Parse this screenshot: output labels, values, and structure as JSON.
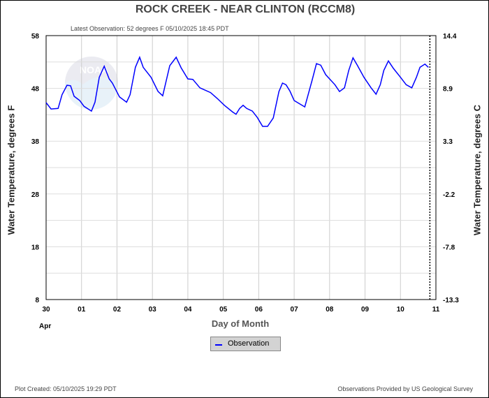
{
  "title": "ROCK CREEK - NEAR CLINTON  (RCCM8)",
  "latest_observation": "Latest Observation: 52 degrees F 05/10/2025 18:45 PDT",
  "footer": {
    "plot_created": "Plot Created: 05/10/2025 19:29 PDT",
    "provider": "Observations Provided by US Geological Survey"
  },
  "watermark": "NOAA",
  "chart_data": {
    "type": "line",
    "title": "ROCK CREEK - NEAR CLINTON  (RCCM8)",
    "xlabel": "Day of Month",
    "xlabel_month": "Apr",
    "ylabel": "Water Temperature, degrees F",
    "ylabel_right": "Water Temperature, degrees C",
    "xlim": [
      0,
      11
    ],
    "ylim": [
      8,
      58
    ],
    "x_ticks": [
      "30",
      "01",
      "02",
      "03",
      "04",
      "05",
      "06",
      "07",
      "08",
      "09",
      "10",
      "11"
    ],
    "y_ticks": [
      "58",
      "48",
      "38",
      "28",
      "18",
      "8"
    ],
    "y_tick_values": [
      58,
      48,
      38,
      28,
      18,
      8
    ],
    "y_ticks_right": [
      "14.4",
      "8.9",
      "3.3",
      "-2.2",
      "-7.8",
      "-13.3"
    ],
    "grid": true,
    "current_time_marker_day": 10.83,
    "legend": {
      "entries": [
        "Observation"
      ],
      "placement": "bottom-center"
    },
    "series": [
      {
        "name": "Observation",
        "color": "#0000ff",
        "x": [
          0,
          0.14,
          0.34,
          0.45,
          0.59,
          0.69,
          0.79,
          0.95,
          1.07,
          1.28,
          1.38,
          1.5,
          1.64,
          1.78,
          1.87,
          2.07,
          2.27,
          2.37,
          2.52,
          2.64,
          2.74,
          2.96,
          3.16,
          3.29,
          3.49,
          3.67,
          3.81,
          4.0,
          4.14,
          4.34,
          4.64,
          4.83,
          5.03,
          5.27,
          5.36,
          5.46,
          5.56,
          5.66,
          5.82,
          5.96,
          6.11,
          6.25,
          6.41,
          6.57,
          6.67,
          6.77,
          6.88,
          7.0,
          7.3,
          7.5,
          7.63,
          7.75,
          7.89,
          8.15,
          8.28,
          8.42,
          8.54,
          8.66,
          8.78,
          8.97,
          9.17,
          9.31,
          9.43,
          9.53,
          9.66,
          9.8,
          10.0,
          10.16,
          10.32,
          10.45,
          10.55,
          10.69,
          10.79
        ],
        "y": [
          45.3,
          44.1,
          44.2,
          46.8,
          48.6,
          48.5,
          46.5,
          45.7,
          44.6,
          43.7,
          45.4,
          50.1,
          52.2,
          49.8,
          49.0,
          46.4,
          45.4,
          46.8,
          52.0,
          53.9,
          52.0,
          50.1,
          47.4,
          46.6,
          52.3,
          53.9,
          51.9,
          49.8,
          49.7,
          48.1,
          47.2,
          46.1,
          44.8,
          43.5,
          43.1,
          44.2,
          44.8,
          44.2,
          43.7,
          42.5,
          40.8,
          40.8,
          42.4,
          47.4,
          49.0,
          48.7,
          47.5,
          45.7,
          44.5,
          49.4,
          52.7,
          52.4,
          50.6,
          48.7,
          47.4,
          48.1,
          51.4,
          53.8,
          52.4,
          50.1,
          48.1,
          46.9,
          48.7,
          51.4,
          53.2,
          51.8,
          50.1,
          48.7,
          48.1,
          50.1,
          52.0,
          52.6,
          52.0
        ]
      }
    ]
  }
}
